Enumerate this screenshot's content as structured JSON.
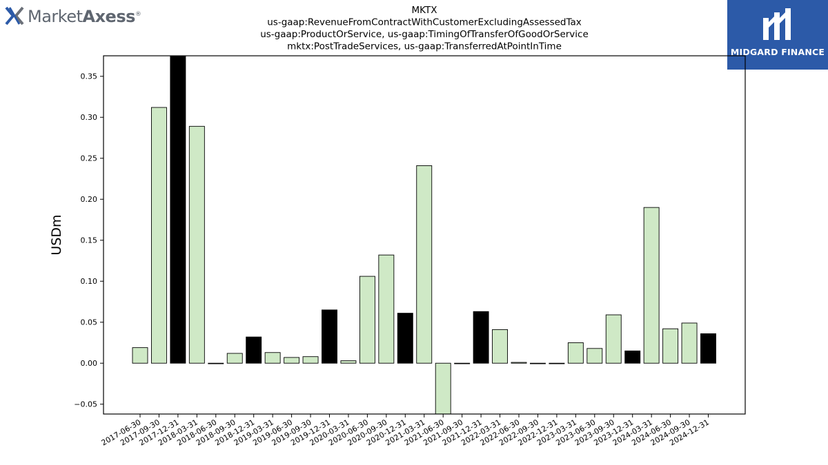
{
  "branding": {
    "left_logo_light": "Market",
    "left_logo_bold": "Axess",
    "left_logo_mark": "®",
    "right_logo": "MIDGARD FINANCE"
  },
  "colors": {
    "light_bar": "#cfe9c6",
    "dark_bar": "#000000",
    "brand_blue": "#2c5aa8"
  },
  "chart_data": {
    "type": "bar",
    "title_lines": [
      "MKTX",
      "us-gaap:RevenueFromContractWithCustomerExcludingAssessedTax",
      "us-gaap:ProductOrService, us-gaap:TimingOfTransferOfGoodOrService",
      "mktx:PostTradeServices, us-gaap:TransferredAtPointInTime"
    ],
    "ylabel": "USDm",
    "ylim": [
      -0.062,
      0.375
    ],
    "yticks": [
      -0.05,
      0.0,
      0.05,
      0.1,
      0.15,
      0.2,
      0.25,
      0.3,
      0.35
    ],
    "ytick_labels": [
      "−0.05",
      "0.00",
      "0.05",
      "0.10",
      "0.15",
      "0.20",
      "0.25",
      "0.30",
      "0.35"
    ],
    "categories": [
      "2017-06-30",
      "2017-09-30",
      "2017-12-31",
      "2018-03-31",
      "2018-06-30",
      "2018-09-30",
      "2018-12-31",
      "2019-03-31",
      "2019-06-30",
      "2019-09-30",
      "2019-12-31",
      "2020-03-31",
      "2020-06-30",
      "2020-09-30",
      "2020-12-31",
      "2021-03-31",
      "2021-06-30",
      "2021-09-30",
      "2021-12-31",
      "2022-03-31",
      "2022-06-30",
      "2022-09-30",
      "2022-12-31",
      "2023-03-31",
      "2023-06-30",
      "2023-09-30",
      "2023-12-31",
      "2024-03-31",
      "2024-06-30",
      "2024-09-30",
      "2024-12-31"
    ],
    "values": [
      0.019,
      0.312,
      0.375,
      0.289,
      0.0,
      0.012,
      0.032,
      0.013,
      0.007,
      0.008,
      0.065,
      0.003,
      0.106,
      0.132,
      0.061,
      0.241,
      -0.062,
      0.0,
      0.063,
      0.041,
      0.001,
      0.0,
      0.0,
      0.025,
      0.018,
      0.059,
      0.015,
      0.19,
      0.042,
      0.049,
      0.036
    ],
    "highlight": [
      false,
      false,
      true,
      false,
      false,
      false,
      true,
      false,
      false,
      false,
      true,
      false,
      false,
      false,
      true,
      false,
      false,
      false,
      true,
      false,
      false,
      false,
      false,
      false,
      false,
      false,
      true,
      false,
      false,
      false,
      true
    ],
    "grid": false,
    "legend": "none"
  }
}
